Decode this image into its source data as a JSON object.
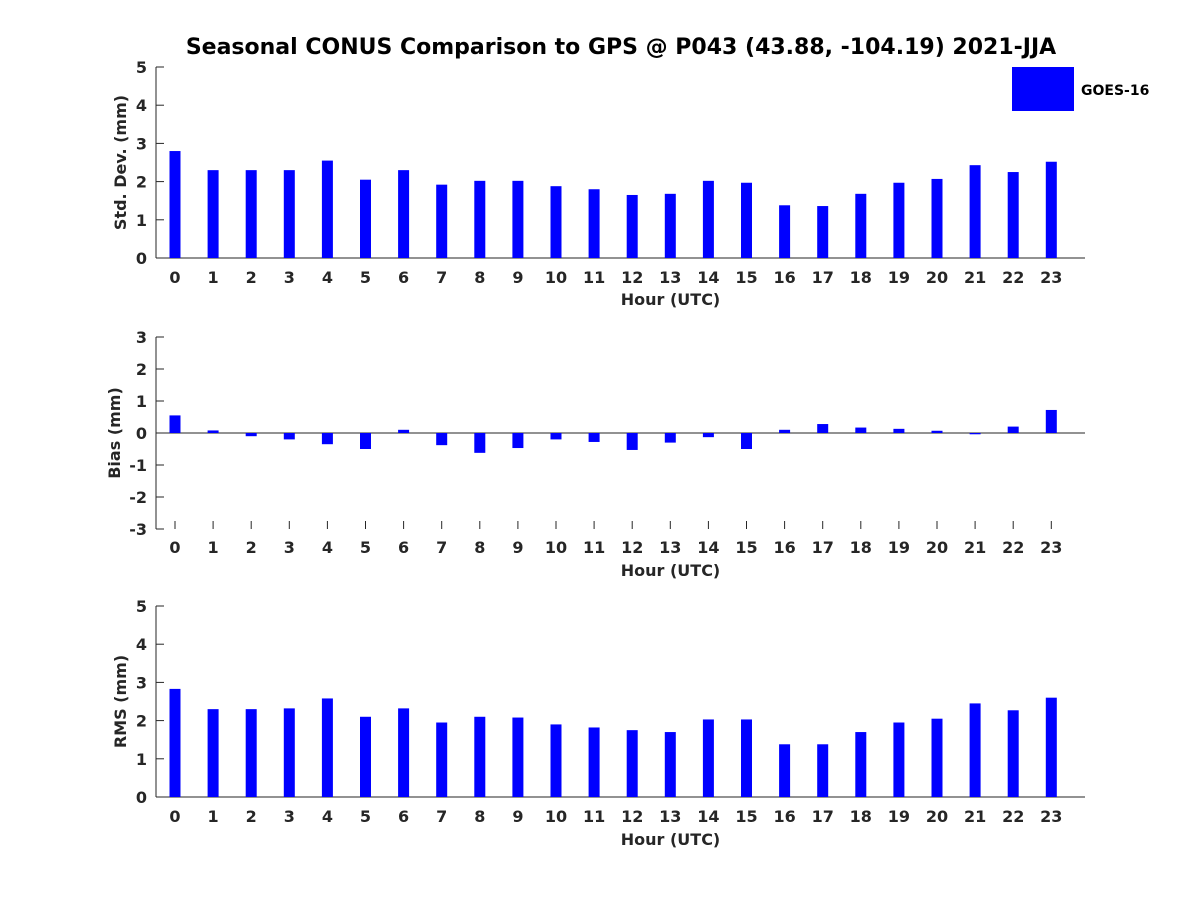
{
  "title": "Seasonal CONUS Comparison to GPS @ P043 (43.88, -104.19) 2021-JJA",
  "legend": {
    "label": "GOES-16",
    "color": "#0000ff",
    "placement": "top-right"
  },
  "chart_data": [
    {
      "type": "bar",
      "name": "std-dev",
      "xlabel": "Hour (UTC)",
      "ylabel": "Std. Dev. (mm)",
      "ylim": [
        0,
        5
      ],
      "yticks": [
        0,
        1,
        2,
        3,
        4,
        5
      ],
      "categories": [
        "0",
        "1",
        "2",
        "3",
        "4",
        "5",
        "6",
        "7",
        "8",
        "9",
        "10",
        "11",
        "12",
        "13",
        "14",
        "15",
        "16",
        "17",
        "18",
        "19",
        "20",
        "21",
        "22",
        "23"
      ],
      "series": [
        {
          "name": "GOES-16",
          "values": [
            2.8,
            2.3,
            2.3,
            2.3,
            2.55,
            2.05,
            2.3,
            1.92,
            2.02,
            2.02,
            1.88,
            1.8,
            1.65,
            1.68,
            2.02,
            1.97,
            1.38,
            1.36,
            1.68,
            1.97,
            2.07,
            2.43,
            2.25,
            2.52
          ]
        }
      ]
    },
    {
      "type": "bar",
      "name": "bias",
      "xlabel": "Hour (UTC)",
      "ylabel": "Bias (mm)",
      "ylim": [
        -3,
        3
      ],
      "yticks": [
        -3,
        -2,
        -1,
        0,
        1,
        2,
        3
      ],
      "categories": [
        "0",
        "1",
        "2",
        "3",
        "4",
        "5",
        "6",
        "7",
        "8",
        "9",
        "10",
        "11",
        "12",
        "13",
        "14",
        "15",
        "16",
        "17",
        "18",
        "19",
        "20",
        "21",
        "22",
        "23"
      ],
      "series": [
        {
          "name": "GOES-16",
          "values": [
            0.55,
            0.08,
            -0.1,
            -0.2,
            -0.35,
            -0.5,
            0.1,
            -0.38,
            -0.62,
            -0.47,
            -0.2,
            -0.28,
            -0.53,
            -0.3,
            -0.13,
            -0.5,
            0.1,
            0.28,
            0.17,
            0.13,
            0.07,
            -0.04,
            0.2,
            0.72
          ]
        }
      ]
    },
    {
      "type": "bar",
      "name": "rms",
      "xlabel": "Hour (UTC)",
      "ylabel": "RMS (mm)",
      "ylim": [
        0,
        5
      ],
      "yticks": [
        0,
        1,
        2,
        3,
        4,
        5
      ],
      "categories": [
        "0",
        "1",
        "2",
        "3",
        "4",
        "5",
        "6",
        "7",
        "8",
        "9",
        "10",
        "11",
        "12",
        "13",
        "14",
        "15",
        "16",
        "17",
        "18",
        "19",
        "20",
        "21",
        "22",
        "23"
      ],
      "series": [
        {
          "name": "GOES-16",
          "values": [
            2.83,
            2.3,
            2.3,
            2.32,
            2.58,
            2.1,
            2.32,
            1.95,
            2.1,
            2.08,
            1.9,
            1.82,
            1.75,
            1.7,
            2.03,
            2.03,
            1.38,
            1.38,
            1.7,
            1.95,
            2.05,
            2.45,
            2.27,
            2.6
          ]
        }
      ]
    }
  ]
}
